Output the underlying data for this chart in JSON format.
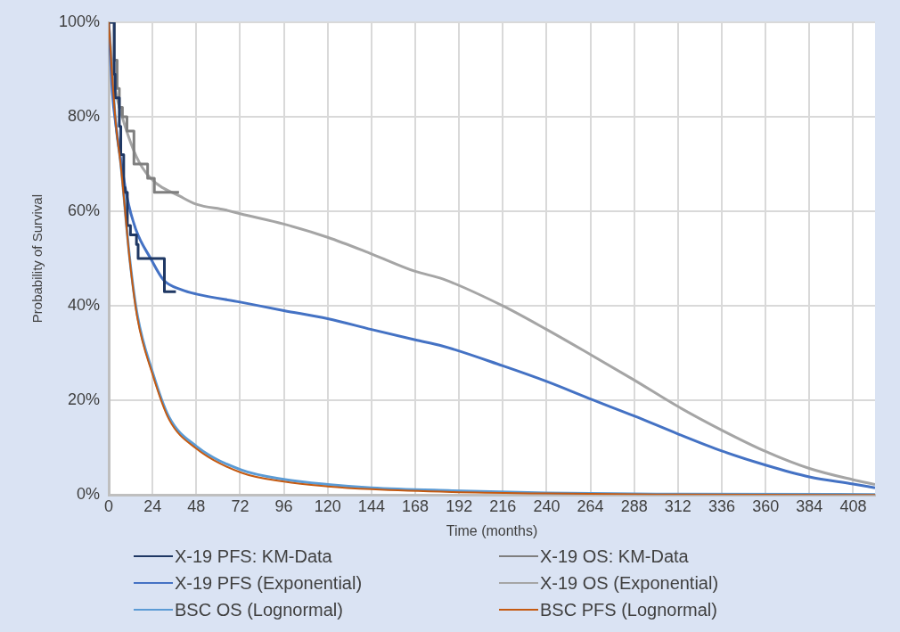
{
  "chart_data": {
    "type": "line",
    "xlabel": "Time (months)",
    "ylabel": "Probability of Survival",
    "xlim": [
      0,
      420
    ],
    "xticks": [
      0,
      24,
      48,
      72,
      96,
      120,
      144,
      168,
      192,
      216,
      240,
      264,
      288,
      312,
      336,
      360,
      384,
      408
    ],
    "ylim": [
      0,
      100
    ],
    "yticks": [
      {
        "value": 0,
        "label": "0%"
      },
      {
        "value": 20,
        "label": "20%"
      },
      {
        "value": 40,
        "label": "40%"
      },
      {
        "value": 60,
        "label": "60%"
      },
      {
        "value": 80,
        "label": "80%"
      },
      {
        "value": 100,
        "label": "100%"
      }
    ],
    "grid": true,
    "legend": "bottom",
    "marker": "none",
    "series": [
      {
        "name": "X-19 PFS: KM-Data",
        "type": "step",
        "color": "#1f3864",
        "x": [
          0,
          3,
          3.5,
          5.8,
          6.6,
          8.2,
          9,
          10.2,
          11.9,
          15.2,
          16.1,
          30.5,
          36.8
        ],
        "values": [
          100,
          89,
          84,
          78,
          72,
          65,
          64,
          57,
          55,
          53,
          50,
          43,
          43
        ]
      },
      {
        "name": "X-19 OS: KM-Data",
        "type": "step",
        "color": "#7f7f7f",
        "x": [
          0,
          3,
          4.6,
          5.8,
          7.5,
          10,
          13.8,
          21.3,
          25,
          38.5
        ],
        "values": [
          100,
          92,
          86,
          82,
          80,
          77,
          70,
          67,
          64,
          64
        ]
      },
      {
        "name": "X-19 PFS (Exponential)",
        "type": "line",
        "color": "#4472c4",
        "x": [
          0,
          2,
          4,
          7,
          10,
          15,
          23,
          30,
          40,
          48,
          72,
          96,
          120,
          144,
          168,
          183,
          216,
          240,
          264,
          288,
          312,
          336,
          360,
          384,
          408,
          420
        ],
        "values": [
          100,
          85,
          78,
          70,
          63,
          56,
          50,
          45.5,
          43.4,
          42.5,
          40.8,
          39,
          37.3,
          35,
          32.8,
          31.5,
          27.3,
          24,
          20.3,
          16.7,
          12.9,
          9.3,
          6.3,
          3.8,
          2.3,
          1.5
        ]
      },
      {
        "name": "X-19 OS (Exponential)",
        "type": "line",
        "color": "#a5a5a5",
        "x": [
          0,
          2,
          4,
          6.6,
          15,
          23,
          40,
          48,
          64,
          72,
          96,
          120,
          144,
          168,
          183,
          216,
          240,
          264,
          288,
          312,
          336,
          360,
          384,
          408,
          420
        ],
        "values": [
          100,
          90,
          85,
          81,
          71.7,
          67,
          63,
          61.5,
          60.3,
          59.5,
          57.3,
          54.5,
          51,
          47.3,
          45.7,
          40,
          35,
          29.7,
          24.3,
          18.7,
          13.7,
          9.2,
          5.6,
          3.2,
          2.2
        ]
      },
      {
        "name": "BSC OS (Lognormal)",
        "type": "line",
        "color": "#5b9bd5",
        "x": [
          0,
          2,
          4,
          6.6,
          11.5,
          15.7,
          24,
          33,
          48,
          72.6,
          96,
          120,
          144,
          188,
          240,
          300,
          420
        ],
        "values": [
          100,
          88,
          78,
          70,
          50,
          38,
          26,
          16.5,
          10.3,
          5.3,
          3.3,
          2.2,
          1.5,
          0.9,
          0.4,
          0.2,
          0.1
        ]
      },
      {
        "name": "BSC PFS (Lognormal)",
        "type": "line",
        "color": "#c55a11",
        "x": [
          0,
          2,
          4,
          6.6,
          11.5,
          15.7,
          24,
          33,
          48,
          72.6,
          96,
          120,
          144,
          188,
          240,
          300,
          420
        ],
        "values": [
          100,
          88,
          78,
          69.7,
          49.7,
          37.4,
          25.5,
          16,
          9.8,
          4.7,
          2.8,
          1.8,
          1.2,
          0.6,
          0.3,
          0.1,
          0
        ]
      }
    ]
  }
}
